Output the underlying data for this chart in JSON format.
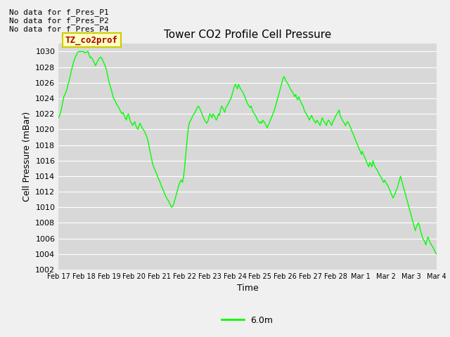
{
  "title": "Tower CO2 Profile Cell Pressure",
  "ylabel": "Cell Pressure (mBar)",
  "xlabel": "Time",
  "ylim": [
    1002,
    1031
  ],
  "yticks": [
    1002,
    1004,
    1006,
    1008,
    1010,
    1012,
    1014,
    1016,
    1018,
    1020,
    1022,
    1024,
    1026,
    1028,
    1030
  ],
  "fig_bg_color": "#f0f0f0",
  "plot_bg_color": "#d8d8d8",
  "line_color": "#00ff00",
  "line_width": 1.0,
  "legend_label": "6.0m",
  "no_data_texts": [
    "No data for f_Pres_P1",
    "No data for f_Pres_P2",
    "No data for f_Pres_P4"
  ],
  "legend_box_facecolor": "#ffffc0",
  "legend_box_edgecolor": "#cccc00",
  "legend_text_color": "#aa0000",
  "legend_box_text": "TZ_co2prof",
  "xtick_labels": [
    "Feb 17",
    "Feb 18",
    "Feb 19",
    "Feb 20",
    "Feb 21",
    "Feb 22",
    "Feb 23",
    "Feb 24",
    "Feb 25",
    "Feb 26",
    "Feb 27",
    "Feb 28",
    "Mar 1",
    "Mar 2",
    "Mar 3",
    "Mar 4"
  ],
  "y_data": [
    1021.5,
    1021.8,
    1022.2,
    1022.8,
    1023.5,
    1024.2,
    1024.5,
    1024.8,
    1025.2,
    1025.8,
    1026.2,
    1026.8,
    1027.5,
    1028.0,
    1028.5,
    1029.0,
    1029.3,
    1029.6,
    1029.9,
    1030.0,
    1030.0,
    1030.0,
    1030.0,
    1030.0,
    1030.0,
    1029.8,
    1029.9,
    1030.0,
    1030.0,
    1029.5,
    1029.2,
    1029.3,
    1029.0,
    1028.8,
    1028.5,
    1028.2,
    1028.5,
    1028.8,
    1029.0,
    1029.2,
    1029.3,
    1029.1,
    1028.8,
    1028.5,
    1028.2,
    1027.8,
    1027.2,
    1026.5,
    1026.0,
    1025.5,
    1025.0,
    1024.5,
    1024.0,
    1023.8,
    1023.5,
    1023.2,
    1023.0,
    1022.8,
    1022.5,
    1022.2,
    1022.0,
    1022.2,
    1021.8,
    1021.5,
    1021.2,
    1021.8,
    1022.0,
    1021.5,
    1021.0,
    1020.8,
    1020.5,
    1020.8,
    1021.0,
    1020.5,
    1020.2,
    1020.0,
    1020.5,
    1020.8,
    1020.5,
    1020.2,
    1020.0,
    1019.8,
    1019.5,
    1019.2,
    1018.8,
    1018.2,
    1017.5,
    1016.8,
    1016.2,
    1015.5,
    1015.2,
    1014.8,
    1014.5,
    1014.2,
    1013.8,
    1013.5,
    1013.2,
    1012.8,
    1012.5,
    1012.2,
    1011.8,
    1011.5,
    1011.2,
    1011.0,
    1010.8,
    1010.5,
    1010.2,
    1010.0,
    1010.2,
    1010.5,
    1011.0,
    1011.5,
    1012.0,
    1012.5,
    1013.0,
    1013.3,
    1013.5,
    1013.2,
    1013.8,
    1015.0,
    1016.5,
    1018.0,
    1019.5,
    1020.5,
    1021.0,
    1021.2,
    1021.5,
    1021.8,
    1022.0,
    1022.2,
    1022.5,
    1022.8,
    1023.0,
    1022.8,
    1022.5,
    1022.2,
    1021.8,
    1021.5,
    1021.2,
    1021.0,
    1020.8,
    1021.0,
    1021.5,
    1022.0,
    1021.8,
    1021.5,
    1022.0,
    1021.8,
    1021.5,
    1021.2,
    1021.5,
    1022.0,
    1021.8,
    1022.5,
    1023.0,
    1022.8,
    1022.5,
    1022.2,
    1022.8,
    1023.0,
    1023.2,
    1023.5,
    1023.8,
    1024.0,
    1024.5,
    1025.0,
    1025.5,
    1025.8,
    1025.5,
    1025.2,
    1025.8,
    1025.5,
    1025.2,
    1025.0,
    1024.8,
    1024.5,
    1024.2,
    1023.8,
    1023.5,
    1023.2,
    1023.0,
    1022.8,
    1023.0,
    1022.5,
    1022.2,
    1022.0,
    1021.8,
    1021.5,
    1021.2,
    1021.0,
    1020.8,
    1021.0,
    1020.8,
    1021.2,
    1021.0,
    1020.8,
    1020.5,
    1020.2,
    1020.5,
    1020.8,
    1021.2,
    1021.5,
    1021.8,
    1022.2,
    1022.5,
    1023.0,
    1023.5,
    1024.0,
    1024.5,
    1025.0,
    1025.5,
    1026.0,
    1026.5,
    1026.8,
    1026.5,
    1026.2,
    1026.0,
    1025.8,
    1025.5,
    1025.2,
    1025.0,
    1024.8,
    1024.5,
    1024.2,
    1024.5,
    1024.0,
    1023.8,
    1024.2,
    1023.8,
    1023.5,
    1023.2,
    1023.0,
    1022.5,
    1022.2,
    1022.0,
    1021.8,
    1021.5,
    1021.2,
    1021.5,
    1021.8,
    1021.5,
    1021.2,
    1021.0,
    1020.8,
    1021.2,
    1021.0,
    1020.8,
    1020.5,
    1021.0,
    1021.5,
    1021.2,
    1021.0,
    1020.8,
    1020.5,
    1021.0,
    1021.2,
    1021.0,
    1020.8,
    1020.5,
    1021.0,
    1021.2,
    1021.5,
    1021.8,
    1022.0,
    1022.2,
    1022.5,
    1021.8,
    1021.5,
    1021.2,
    1021.0,
    1020.8,
    1020.5,
    1020.8,
    1021.0,
    1020.8,
    1020.5,
    1020.2,
    1019.8,
    1019.5,
    1019.2,
    1018.8,
    1018.5,
    1018.2,
    1017.8,
    1017.5,
    1017.2,
    1016.8,
    1017.2,
    1016.8,
    1016.5,
    1016.2,
    1015.8,
    1015.5,
    1015.2,
    1015.8,
    1015.5,
    1015.2,
    1016.0,
    1015.5,
    1015.2,
    1015.0,
    1014.8,
    1014.5,
    1014.2,
    1014.0,
    1013.8,
    1013.5,
    1013.2,
    1013.5,
    1013.2,
    1013.0,
    1012.8,
    1012.5,
    1012.2,
    1011.8,
    1011.5,
    1011.2,
    1011.5,
    1011.8,
    1012.2,
    1012.5,
    1013.0,
    1013.5,
    1014.0,
    1013.5,
    1013.0,
    1012.5,
    1012.0,
    1011.5,
    1011.0,
    1010.5,
    1010.0,
    1009.5,
    1009.0,
    1008.5,
    1008.0,
    1007.5,
    1007.0,
    1007.5,
    1007.8,
    1008.0,
    1007.5,
    1007.0,
    1006.5,
    1006.0,
    1005.8,
    1005.5,
    1005.2,
    1005.8,
    1006.2,
    1005.8,
    1005.5,
    1005.2,
    1005.0,
    1004.8,
    1004.5,
    1004.2,
    1004.0
  ]
}
